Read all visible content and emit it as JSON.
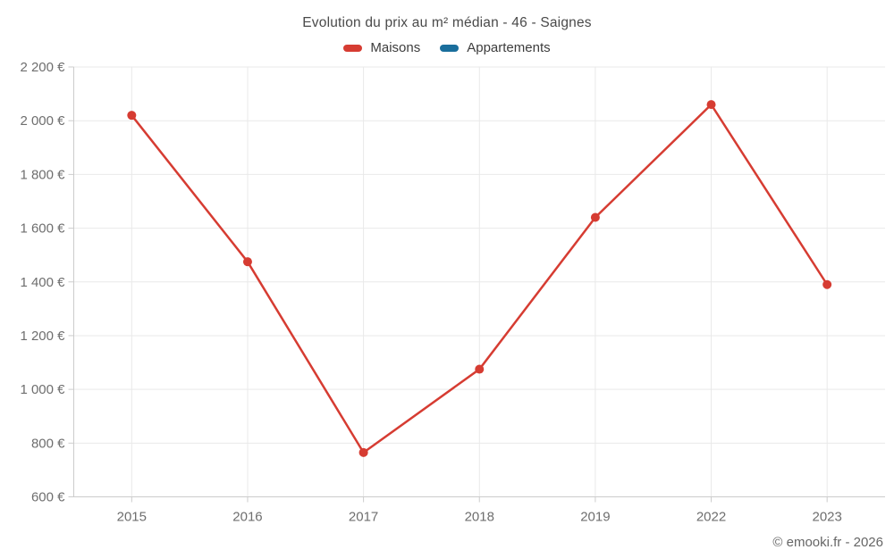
{
  "chart_data": {
    "type": "line",
    "title": "Evolution du prix au m² médian - 46 - Saignes",
    "categories": [
      "2015",
      "2016",
      "2017",
      "2018",
      "2019",
      "2022",
      "2023"
    ],
    "series": [
      {
        "name": "Maisons",
        "color": "#d63c32",
        "values": [
          2020,
          1475,
          765,
          1075,
          1640,
          2060,
          1390
        ]
      },
      {
        "name": "Appartements",
        "color": "#1a6e9c",
        "values": []
      }
    ],
    "xlabel": "",
    "ylabel": "",
    "ylim": [
      600,
      2200
    ],
    "ytick_step": 200,
    "y_suffix": " €",
    "grid": true,
    "legend_position": "top",
    "grid_color": "#e9e9e9",
    "axis_color": "#cccccc",
    "tick_label_color": "#6e6e6e"
  },
  "footer": {
    "copyright": "© emooki.fr - 2026"
  }
}
